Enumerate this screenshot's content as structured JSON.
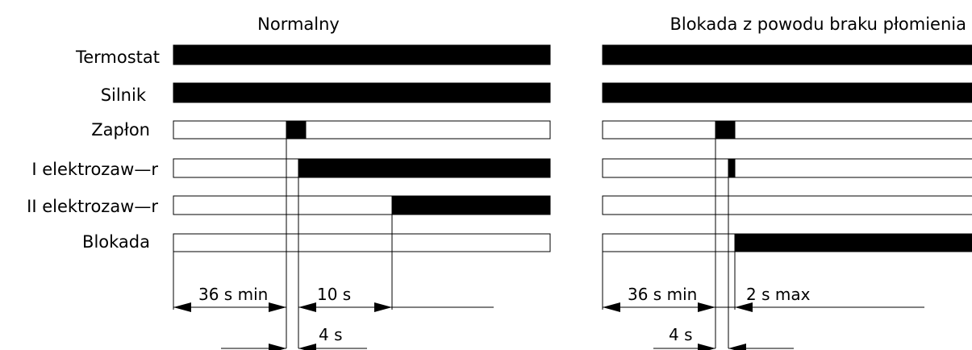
{
  "left_panel": {
    "title": "Normalny",
    "labels": [
      "Termostat",
      "Silnik",
      "Zapłon",
      "I elektrozaw—r",
      "II elektrozaw—r",
      "Blokada"
    ],
    "dimensions": {
      "d1": "36 s min",
      "d2": "10 s",
      "d3": "4 s"
    }
  },
  "right_panel": {
    "title": "Blokada z powodu braku płomienia",
    "dimensions": {
      "d1": "36 s min",
      "d2": "2 s max",
      "d3": "4 s"
    }
  }
}
